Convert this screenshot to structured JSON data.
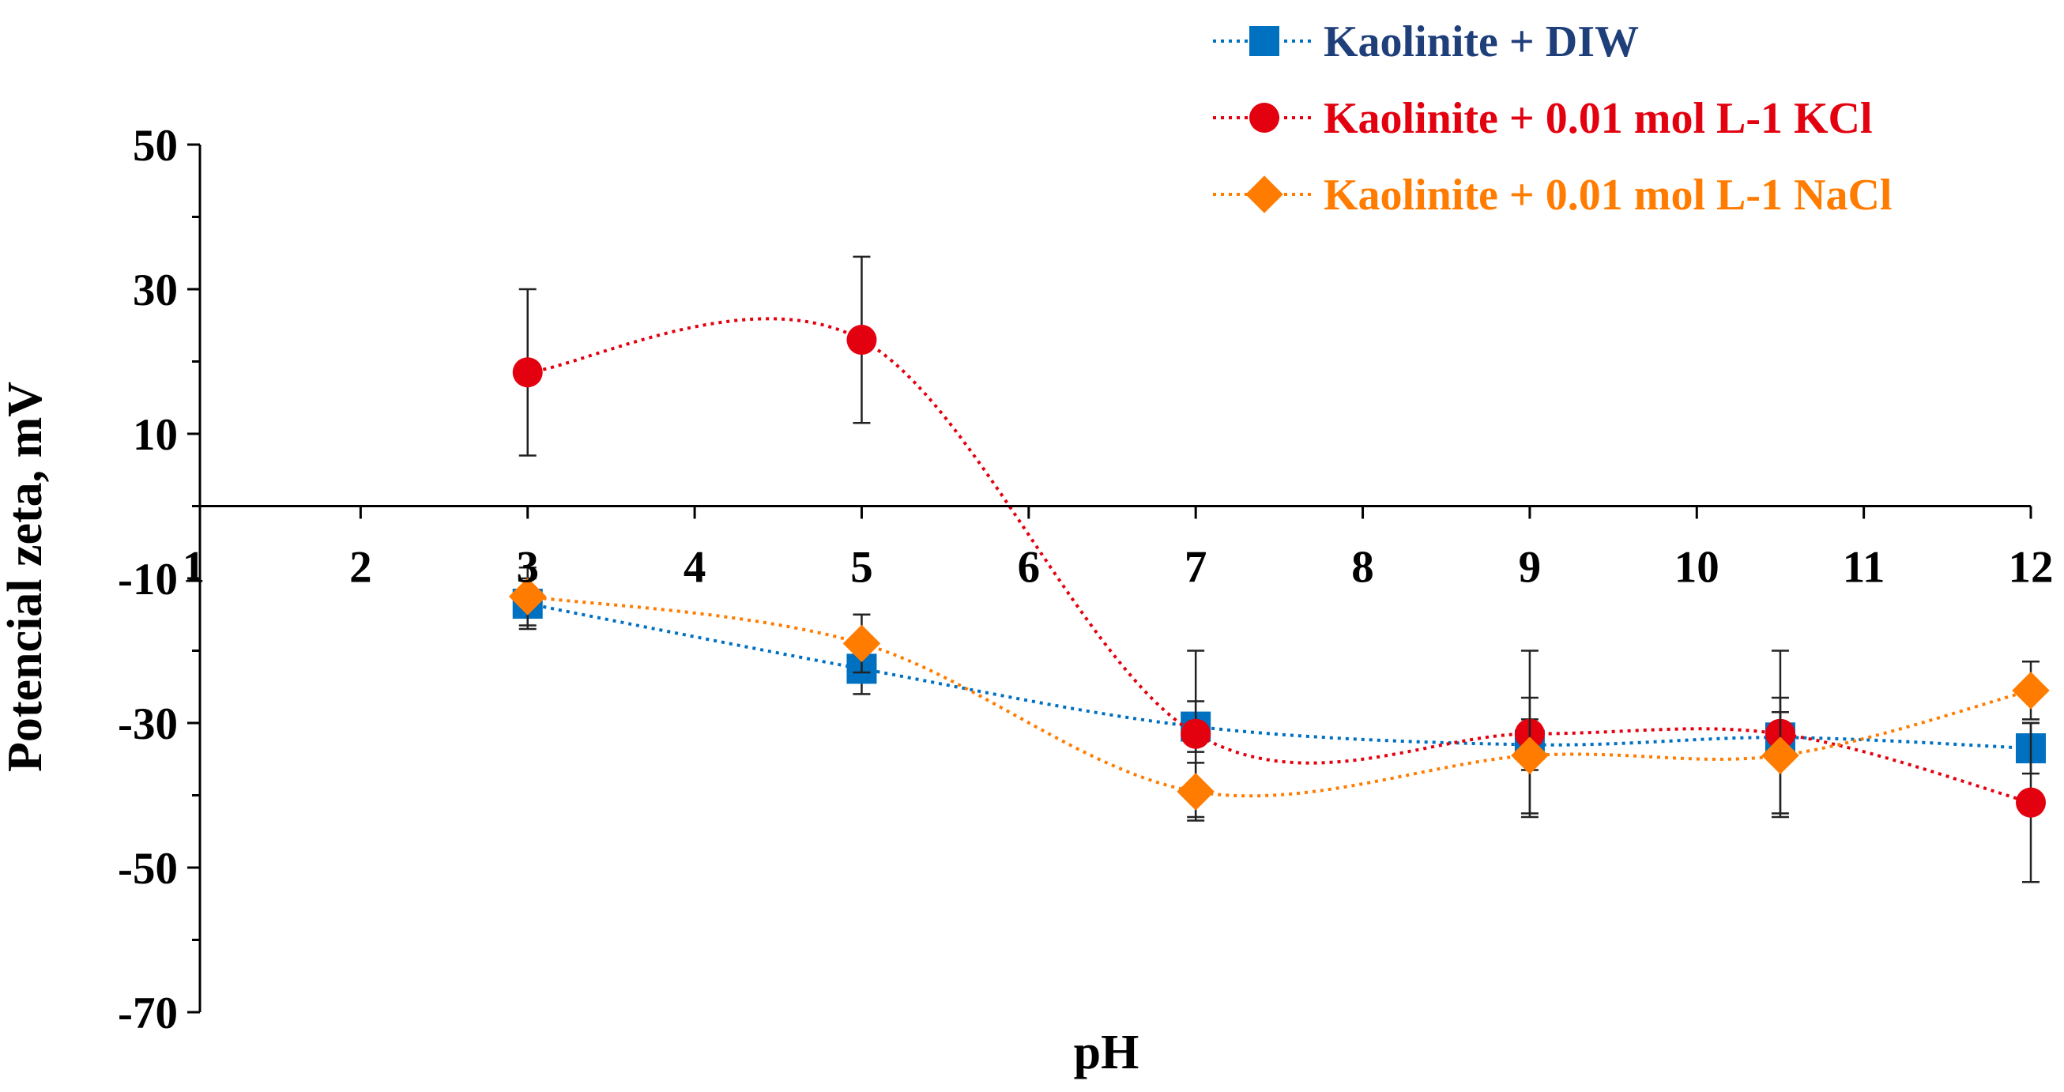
{
  "chart_data": {
    "type": "line",
    "title": "",
    "xlabel": "pH",
    "ylabel": "Potencial zeta, mV",
    "xlim": [
      1,
      12
    ],
    "ylim": [
      -70,
      50
    ],
    "x_ticks": [
      1,
      2,
      3,
      4,
      5,
      6,
      7,
      8,
      9,
      10,
      11,
      12
    ],
    "y_ticks": [
      50,
      30,
      10,
      -10,
      -30,
      -50,
      -70
    ],
    "x_tick_labels": [
      "1",
      "2",
      "3",
      "4",
      "5",
      "6",
      "7",
      "8",
      "9",
      "10",
      "11",
      "12"
    ],
    "y_tick_labels": [
      "50",
      "30",
      "10",
      "-10",
      "-30",
      "-50",
      "-70"
    ],
    "legend_position": "top-right",
    "series": [
      {
        "name": "Kaolinite + DIW",
        "color": "#0070C0",
        "marker": "square",
        "x": [
          3,
          5,
          7,
          9,
          10.5,
          12
        ],
        "y": [
          -13.5,
          -22.5,
          -30.5,
          -33,
          -32,
          -33.5
        ],
        "err": [
          3.5,
          3.5,
          3.5,
          3.5,
          3.5,
          3.5
        ]
      },
      {
        "name": "Kaolinite + 0.01 mol L-1 KCl",
        "color": "#E3000F",
        "marker": "circle",
        "x": [
          3,
          5,
          7,
          9,
          10.5,
          12
        ],
        "y": [
          18.5,
          23,
          -31.5,
          -31.5,
          -31.5,
          -41
        ],
        "err": [
          11.5,
          11.5,
          11.5,
          11.5,
          11.5,
          11
        ]
      },
      {
        "name": "Kaolinite + 0.01 mol L-1 NaCl",
        "color": "#FF7C00",
        "marker": "diamond",
        "x": [
          3,
          5,
          7,
          9,
          10.5,
          12
        ],
        "y": [
          -12.5,
          -19,
          -39.5,
          -34.5,
          -34.5,
          -25.5
        ],
        "err": [
          4,
          4,
          4,
          8,
          8,
          4
        ]
      }
    ]
  }
}
